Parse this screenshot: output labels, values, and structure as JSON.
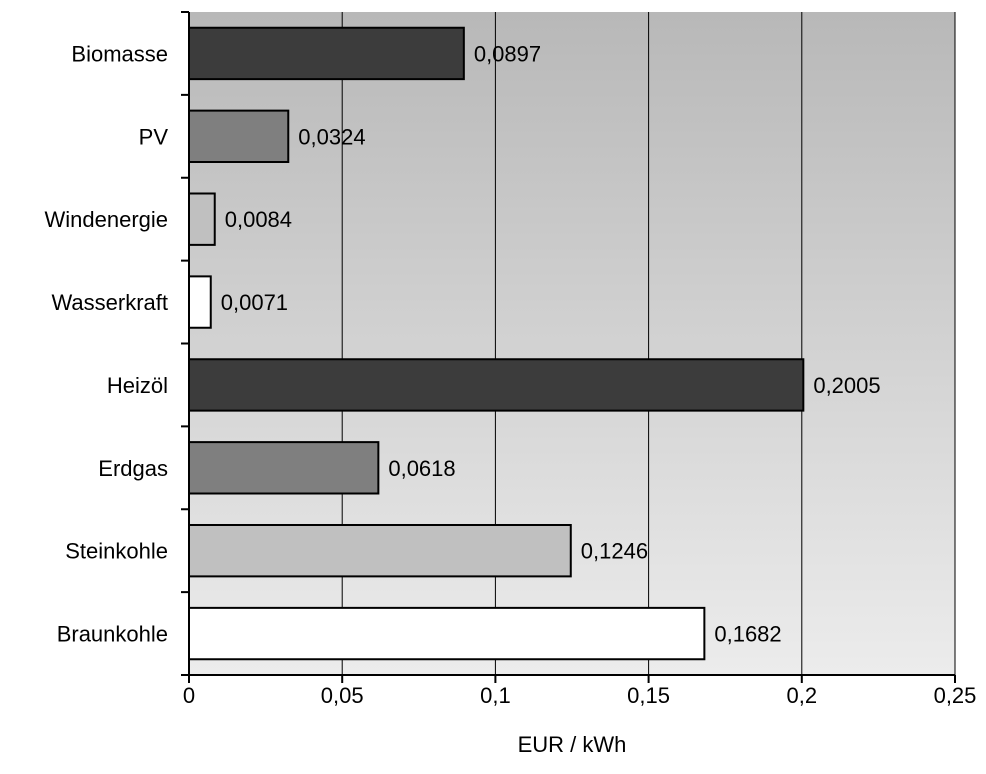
{
  "chart_data": {
    "type": "bar",
    "orientation": "horizontal",
    "categories": [
      "Biomasse",
      "PV",
      "Windenergie",
      "Wasserkraft",
      "Heizöl",
      "Erdgas",
      "Steinkohle",
      "Braunkohle"
    ],
    "values": [
      0.0897,
      0.0324,
      0.0084,
      0.0071,
      0.2005,
      0.0618,
      0.1246,
      0.1682
    ],
    "value_labels": [
      "0,0897",
      "0,0324",
      "0,0084",
      "0,0071",
      "0,2005",
      "0,0618",
      "0,1246",
      "0,1682"
    ],
    "bar_colors": [
      "#3c3c3c",
      "#7f7f7f",
      "#c0c0c0",
      "#ffffff",
      "#3c3c3c",
      "#7f7f7f",
      "#c0c0c0",
      "#ffffff"
    ],
    "xlabel": "EUR / kWh",
    "ylabel": "",
    "title": "",
    "xlim": [
      0,
      0.25
    ],
    "x_ticks": [
      0,
      0.05,
      0.1,
      0.15,
      0.2,
      0.25
    ],
    "x_tick_labels": [
      "0",
      "0,05",
      "0,1",
      "0,15",
      "0,2",
      "0,25"
    ],
    "grid": "vertical",
    "legend": "none",
    "plot_background": [
      "#b8b8b8",
      "#ececec"
    ]
  }
}
